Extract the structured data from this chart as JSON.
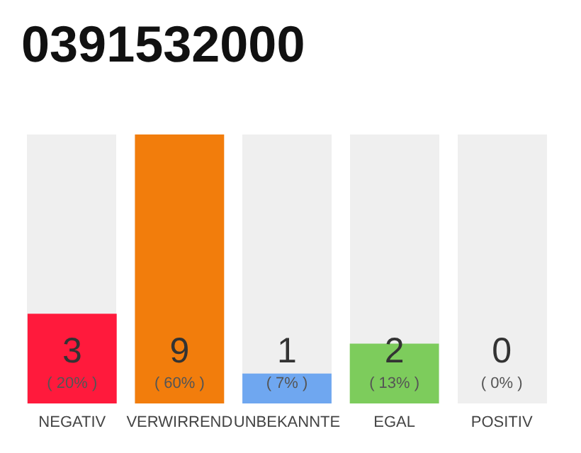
{
  "chart_data": {
    "type": "bar",
    "title": "0391532000",
    "categories": [
      "NEGATIV",
      "VERWIRREND",
      "UNBEKANNTE",
      "EGAL",
      "POSITIV"
    ],
    "values": [
      3,
      9,
      1,
      2,
      0
    ],
    "colors": [
      "#ff1a3c",
      "#f27d0c",
      "#6fa7f0",
      "#7dcc5c",
      "#2e9e4a"
    ],
    "value_labels": [
      "3\n( 20% )",
      "9\n( 60% )",
      "1\n( 7% )",
      "2\n( 13% )",
      "0\n( 0% )"
    ],
    "ylim": [
      0,
      9
    ],
    "tick_labels": "x"
  }
}
